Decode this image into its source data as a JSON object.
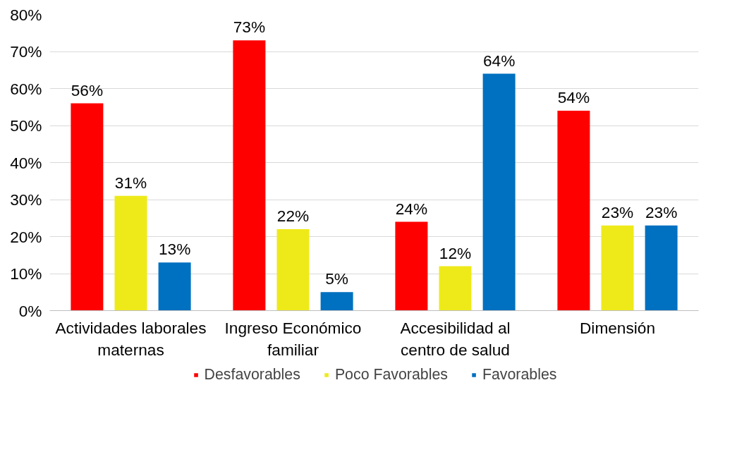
{
  "chart_data": {
    "type": "bar",
    "categories": [
      "Actividades laborales maternas",
      "Ingreso Económico familiar",
      "Accesibilidad al centro de salud",
      "Dimensión"
    ],
    "series": [
      {
        "name": "Desfavorables",
        "color": "#ff0000",
        "values": [
          56,
          73,
          24,
          54
        ],
        "value_labels": [
          "56%",
          "73%",
          "24%",
          "54%"
        ]
      },
      {
        "name": "Poco Favorables",
        "color": "#eeea1a",
        "values": [
          31,
          22,
          12,
          23
        ],
        "value_labels": [
          "31%",
          "22%",
          "12%",
          "23%"
        ]
      },
      {
        "name": "Favorables",
        "color": "#0070c0",
        "values": [
          13,
          5,
          64,
          23
        ],
        "value_labels": [
          "13%",
          "5%",
          "64%",
          "23%"
        ]
      }
    ],
    "ylim": [
      0,
      80
    ],
    "yticks": [
      {
        "value": 0,
        "label": "0%"
      },
      {
        "value": 10,
        "label": "10%"
      },
      {
        "value": 20,
        "label": "20%"
      },
      {
        "value": 30,
        "label": "30%"
      },
      {
        "value": 40,
        "label": "40%"
      },
      {
        "value": 50,
        "label": "50%"
      },
      {
        "value": 60,
        "label": "60%"
      },
      {
        "value": 70,
        "label": "70%"
      },
      {
        "value": 80,
        "label": "80%"
      }
    ],
    "grid": "y",
    "legend": "bottom"
  }
}
